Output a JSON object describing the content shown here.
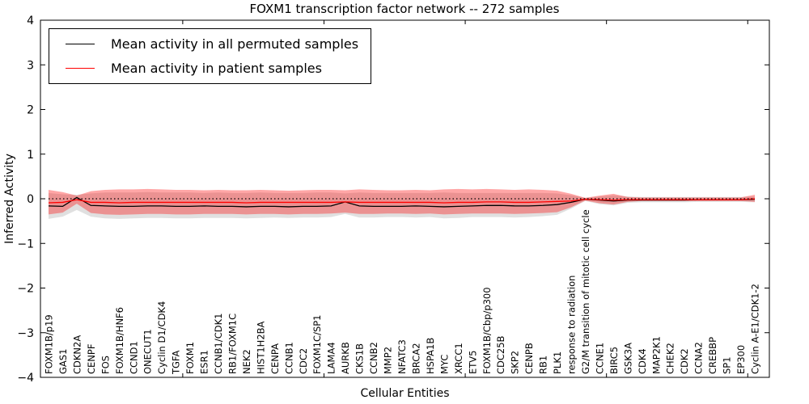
{
  "page": {
    "background": "#ffffff"
  },
  "legend": {
    "items": [
      {
        "label": "Mean activity in all permuted samples",
        "color": "#000000"
      },
      {
        "label": "Mean activity in patient samples",
        "color": "#ff0000"
      }
    ]
  },
  "chart_data": {
    "type": "line",
    "title": "FOXM1 transcription factor network -- 272 samples",
    "xlabel": "Cellular Entities",
    "ylabel": "Inferred Activity",
    "ylim": [
      -4,
      4
    ],
    "yticks": [
      4,
      3,
      2,
      1,
      0,
      -1,
      -2,
      -3,
      -4
    ],
    "xticks": [
      10,
      20,
      30,
      40,
      50
    ],
    "grid": false,
    "legend_position": "upper left",
    "zero_line": 0,
    "categories": [
      "FOXM1B/p19",
      "GAS1",
      "CDKN2A",
      "CENPF",
      "FOS",
      "FOXM1B/HNF6",
      "CCND1",
      "ONECUT1",
      "Cyclin D1/CDK4",
      "TGFA",
      "FOXM1",
      "ESR1",
      "CCNB1/CDK1",
      "RB1/FOXM1C",
      "NEK2",
      "HIST1H2BA",
      "CENPA",
      "CCNB1",
      "CDC2",
      "FOXM1C/SP1",
      "LAMA4",
      "AURKB",
      "CKS1B",
      "CCNB2",
      "MMP2",
      "NFATC3",
      "BRCA2",
      "HSPA1B",
      "MYC",
      "XRCC1",
      "ETV5",
      "FOXM1B/Cbp/p300",
      "CDC25B",
      "SKP2",
      "CENPB",
      "RB1",
      "PLK1",
      "response to radiation",
      "G2/M transition of mitotic cell cycle",
      "CCNE1",
      "BIRC5",
      "GSK3A",
      "CDK4",
      "MAP2K1",
      "CHEK2",
      "CDK2",
      "CCNA2",
      "CREBBP",
      "SP1",
      "EP300",
      "Cyclin A-E1/CDK1-2"
    ],
    "series": [
      {
        "name": "Mean activity in all permuted samples",
        "color": "#000000",
        "values": [
          -0.16,
          -0.17,
          0.03,
          -0.15,
          -0.16,
          -0.17,
          -0.17,
          -0.16,
          -0.16,
          -0.17,
          -0.17,
          -0.16,
          -0.17,
          -0.17,
          -0.18,
          -0.17,
          -0.17,
          -0.18,
          -0.17,
          -0.17,
          -0.16,
          -0.07,
          -0.16,
          -0.17,
          -0.17,
          -0.17,
          -0.16,
          -0.17,
          -0.18,
          -0.17,
          -0.16,
          -0.15,
          -0.15,
          -0.16,
          -0.16,
          -0.15,
          -0.13,
          -0.08,
          -0.01,
          -0.03,
          -0.05,
          -0.03,
          -0.03,
          -0.03,
          -0.03,
          -0.03,
          -0.02,
          -0.02,
          -0.02,
          -0.02,
          -0.01
        ]
      },
      {
        "name": "Mean activity in patient samples",
        "color": "#ff0000",
        "values": [
          -0.09,
          -0.08,
          -0.02,
          -0.08,
          -0.08,
          -0.09,
          -0.08,
          -0.08,
          -0.08,
          -0.08,
          -0.08,
          -0.08,
          -0.08,
          -0.08,
          -0.09,
          -0.08,
          -0.08,
          -0.08,
          -0.08,
          -0.08,
          -0.08,
          -0.07,
          -0.08,
          -0.08,
          -0.08,
          -0.08,
          -0.08,
          -0.08,
          -0.09,
          -0.08,
          -0.08,
          -0.07,
          -0.07,
          -0.08,
          -0.08,
          -0.07,
          -0.06,
          -0.05,
          -0.01,
          -0.02,
          -0.03,
          -0.02,
          -0.02,
          -0.02,
          -0.02,
          -0.02,
          -0.02,
          -0.02,
          -0.02,
          -0.02,
          0.0
        ]
      }
    ],
    "bands": [
      {
        "name": "permuted_band",
        "color": "rgba(0,0,0,0.12)",
        "upper": [
          0.13,
          0.1,
          0.09,
          0.12,
          0.14,
          0.14,
          0.14,
          0.15,
          0.14,
          0.14,
          0.14,
          0.13,
          0.14,
          0.13,
          0.13,
          0.14,
          0.13,
          0.13,
          0.13,
          0.14,
          0.14,
          0.12,
          0.14,
          0.13,
          0.13,
          0.13,
          0.13,
          0.13,
          0.14,
          0.13,
          0.13,
          0.13,
          0.13,
          0.13,
          0.13,
          0.13,
          0.12,
          0.08,
          0.02,
          0.05,
          0.08,
          0.05,
          0.04,
          0.04,
          0.04,
          0.04,
          0.04,
          0.04,
          0.04,
          0.04,
          0.05
        ],
        "lower": [
          -0.45,
          -0.4,
          -0.25,
          -0.4,
          -0.44,
          -0.45,
          -0.44,
          -0.43,
          -0.43,
          -0.44,
          -0.44,
          -0.43,
          -0.43,
          -0.43,
          -0.44,
          -0.43,
          -0.42,
          -0.43,
          -0.42,
          -0.42,
          -0.41,
          -0.34,
          -0.42,
          -0.42,
          -0.41,
          -0.41,
          -0.42,
          -0.41,
          -0.44,
          -0.43,
          -0.41,
          -0.41,
          -0.41,
          -0.42,
          -0.41,
          -0.39,
          -0.36,
          -0.22,
          -0.05,
          -0.12,
          -0.15,
          -0.09,
          -0.08,
          -0.08,
          -0.08,
          -0.08,
          -0.07,
          -0.07,
          -0.07,
          -0.07,
          -0.08
        ]
      },
      {
        "name": "patient_band",
        "color": "rgba(255,0,0,0.35)",
        "upper": [
          0.2,
          0.15,
          0.07,
          0.17,
          0.2,
          0.21,
          0.21,
          0.22,
          0.21,
          0.2,
          0.2,
          0.19,
          0.2,
          0.19,
          0.19,
          0.2,
          0.19,
          0.18,
          0.19,
          0.2,
          0.2,
          0.19,
          0.21,
          0.2,
          0.19,
          0.19,
          0.2,
          0.19,
          0.21,
          0.22,
          0.21,
          0.22,
          0.21,
          0.2,
          0.21,
          0.2,
          0.18,
          0.11,
          0.02,
          0.07,
          0.11,
          0.04,
          0.03,
          0.03,
          0.03,
          0.03,
          0.03,
          0.03,
          0.03,
          0.03,
          0.09
        ],
        "lower": [
          -0.35,
          -0.31,
          -0.11,
          -0.32,
          -0.35,
          -0.36,
          -0.35,
          -0.34,
          -0.34,
          -0.35,
          -0.35,
          -0.34,
          -0.34,
          -0.34,
          -0.35,
          -0.34,
          -0.34,
          -0.35,
          -0.34,
          -0.34,
          -0.33,
          -0.31,
          -0.34,
          -0.34,
          -0.33,
          -0.33,
          -0.34,
          -0.33,
          -0.35,
          -0.34,
          -0.33,
          -0.33,
          -0.33,
          -0.34,
          -0.33,
          -0.32,
          -0.3,
          -0.19,
          -0.04,
          -0.1,
          -0.13,
          -0.07,
          -0.05,
          -0.05,
          -0.05,
          -0.05,
          -0.05,
          -0.05,
          -0.05,
          -0.05,
          -0.07
        ]
      }
    ]
  }
}
